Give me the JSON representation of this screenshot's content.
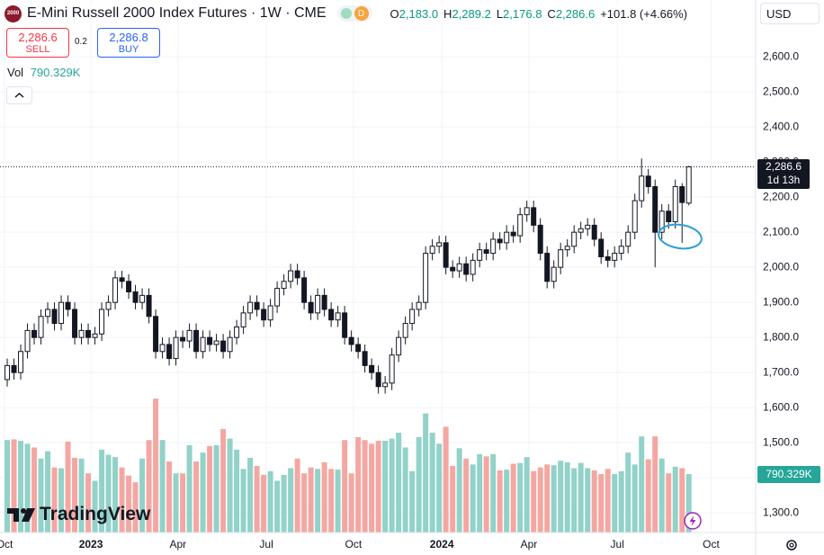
{
  "chart_data": {
    "type": "candlestick",
    "symbol_logo": "2000",
    "title": "E-Mini Russell 2000 Index Futures · 1W · CME",
    "badge": "D",
    "legend": [
      [
        "O",
        "2,183.0"
      ],
      [
        "H",
        "2,289.2"
      ],
      [
        "L",
        "2,176.8"
      ],
      [
        "C",
        "2,286.6"
      ]
    ],
    "change": "+101.8 (+4.66%)",
    "currency": "USD",
    "sell_price": "2,286.6",
    "sell_label": "SELL",
    "spread": "0.2",
    "buy_price": "2,286.8",
    "buy_label": "BUY",
    "volume_title": "Vol",
    "volume_last_label": "790.329K",
    "last_price_label": "2,286.6",
    "countdown": "1d 13h",
    "brand": "TradingView",
    "up_color": "#ffffff",
    "down_color": "#131722",
    "outline_color": "#131722",
    "volume_up_color": "#92d2c8",
    "volume_down_color": "#f4a7a2",
    "open": [
      1680,
      1720,
      1700,
      1760,
      1820,
      1800,
      1860,
      1880,
      1840,
      1900,
      1880,
      1800,
      1820,
      1800,
      1810,
      1880,
      1900,
      1970,
      1960,
      1930,
      1900,
      1920,
      1860,
      1760,
      1780,
      1740,
      1800,
      1790,
      1820,
      1760,
      1800,
      1780,
      1790,
      1760,
      1800,
      1830,
      1870,
      1900,
      1880,
      1850,
      1890,
      1940,
      1960,
      1990,
      1970,
      1900,
      1870,
      1920,
      1880,
      1850,
      1870,
      1800,
      1780,
      1760,
      1720,
      1700,
      1660,
      1670,
      1750,
      1800,
      1840,
      1880,
      1900,
      2040,
      2060,
      2070,
      2000,
      1990,
      2010,
      1980,
      2020,
      2050,
      2040,
      2080,
      2070,
      2100,
      2090,
      2150,
      2170,
      2120,
      2040,
      1960,
      2000,
      2050,
      2060,
      2100,
      2110,
      2120,
      2080,
      2030,
      2020,
      2040,
      2060,
      2100,
      2190,
      2260,
      2230,
      2100,
      2160,
      2130,
      2230,
      2183
    ],
    "high": [
      1740,
      1740,
      1780,
      1840,
      1840,
      1880,
      1900,
      1900,
      1920,
      1920,
      1900,
      1840,
      1840,
      1830,
      1900,
      1920,
      1990,
      1990,
      1980,
      1950,
      1940,
      1940,
      1880,
      1800,
      1800,
      1820,
      1820,
      1840,
      1840,
      1820,
      1820,
      1810,
      1810,
      1820,
      1850,
      1890,
      1920,
      1920,
      1900,
      1910,
      1960,
      1980,
      2010,
      2010,
      1990,
      1920,
      1940,
      1940,
      1900,
      1890,
      1890,
      1820,
      1800,
      1780,
      1740,
      1720,
      1690,
      1770,
      1820,
      1860,
      1900,
      1920,
      2060,
      2080,
      2090,
      2090,
      2020,
      2030,
      2030,
      2040,
      2070,
      2070,
      2100,
      2100,
      2120,
      2120,
      2170,
      2190,
      2190,
      2140,
      2060,
      2020,
      2070,
      2080,
      2120,
      2130,
      2140,
      2140,
      2100,
      2050,
      2060,
      2080,
      2120,
      2210,
      2310,
      2280,
      2250,
      2180,
      2180,
      2250,
      2240,
      2289.2
    ],
    "low": [
      1660,
      1680,
      1680,
      1740,
      1780,
      1780,
      1840,
      1820,
      1820,
      1860,
      1780,
      1780,
      1780,
      1780,
      1790,
      1860,
      1880,
      1940,
      1910,
      1880,
      1880,
      1840,
      1740,
      1740,
      1720,
      1720,
      1770,
      1770,
      1740,
      1740,
      1760,
      1760,
      1740,
      1740,
      1780,
      1810,
      1850,
      1860,
      1830,
      1830,
      1870,
      1920,
      1940,
      1950,
      1880,
      1850,
      1850,
      1860,
      1830,
      1830,
      1780,
      1760,
      1740,
      1700,
      1680,
      1640,
      1640,
      1650,
      1730,
      1780,
      1820,
      1860,
      1880,
      2020,
      2040,
      1980,
      1970,
      1970,
      1960,
      1960,
      2000,
      2020,
      2020,
      2050,
      2050,
      2070,
      2070,
      2130,
      2100,
      2020,
      1940,
      1940,
      1980,
      2030,
      2040,
      2080,
      2090,
      2060,
      2010,
      2000,
      2000,
      2020,
      2040,
      2080,
      2170,
      2210,
      2000,
      2080,
      2110,
      2110,
      2070,
      2176.8
    ],
    "close": [
      1720,
      1700,
      1760,
      1820,
      1800,
      1860,
      1880,
      1840,
      1900,
      1880,
      1800,
      1820,
      1800,
      1810,
      1880,
      1900,
      1970,
      1960,
      1930,
      1900,
      1920,
      1860,
      1760,
      1780,
      1740,
      1800,
      1790,
      1820,
      1760,
      1800,
      1780,
      1790,
      1760,
      1800,
      1830,
      1870,
      1900,
      1880,
      1850,
      1890,
      1940,
      1960,
      1990,
      1970,
      1900,
      1870,
      1920,
      1880,
      1850,
      1870,
      1800,
      1780,
      1760,
      1720,
      1700,
      1660,
      1670,
      1750,
      1800,
      1840,
      1880,
      1900,
      2040,
      2060,
      2070,
      2000,
      1990,
      2010,
      1980,
      2020,
      2050,
      2040,
      2080,
      2070,
      2100,
      2090,
      2150,
      2170,
      2120,
      2040,
      1960,
      2000,
      2050,
      2060,
      2100,
      2110,
      2120,
      2080,
      2030,
      2020,
      2040,
      2060,
      2100,
      2190,
      2260,
      2230,
      2100,
      2160,
      2130,
      2230,
      2184.8,
      2286.6
    ],
    "volume": [
      1250000,
      1260000,
      1240000,
      1200000,
      1150000,
      1000000,
      1100000,
      880000,
      870000,
      1230000,
      1010000,
      1000000,
      800000,
      700000,
      1120000,
      1050000,
      1020000,
      880000,
      770000,
      680000,
      1000000,
      1250000,
      1810000,
      1250000,
      960000,
      800000,
      800000,
      1180000,
      960000,
      1080000,
      1170000,
      1180000,
      1400000,
      1270000,
      1120000,
      860000,
      1010000,
      900000,
      780000,
      830000,
      700000,
      780000,
      870000,
      1000000,
      800000,
      880000,
      860000,
      950000,
      860000,
      850000,
      1250000,
      800000,
      1290000,
      1250000,
      1200000,
      1240000,
      1240000,
      1270000,
      1350000,
      1150000,
      830000,
      1290000,
      1610000,
      1350000,
      1200000,
      1430000,
      900000,
      1140000,
      1000000,
      920000,
      1060000,
      1030000,
      1060000,
      840000,
      850000,
      930000,
      940000,
      1020000,
      830000,
      880000,
      920000,
      910000,
      970000,
      950000,
      870000,
      940000,
      870000,
      840000,
      790000,
      860000,
      790000,
      830000,
      1080000,
      920000,
      1300000,
      990000,
      1300000,
      1000000,
      800000,
      890000,
      870000,
      790329
    ],
    "xlim": [
      -1.07,
      110.9
    ],
    "xticks": [
      {
        "value": -0.4,
        "label": "Oct"
      },
      {
        "value": 12.4,
        "label": "2023"
      },
      {
        "value": 25.3,
        "label": "Apr"
      },
      {
        "value": 38.4,
        "label": "Jul"
      },
      {
        "value": 51.3,
        "label": "Oct"
      },
      {
        "value": 64.4,
        "label": "2024"
      },
      {
        "value": 77.3,
        "label": "Apr"
      },
      {
        "value": 90.4,
        "label": "Jul"
      },
      {
        "value": 104.3,
        "label": "Oct"
      }
    ],
    "ylim": [
      1244,
      2762
    ],
    "yticks": [
      {
        "value": 1300,
        "label": "1,300.0"
      },
      {
        "value": 1400,
        "label": "1,400.0"
      },
      {
        "value": 1500,
        "label": "1,500.0"
      },
      {
        "value": 1600,
        "label": "1,600.0"
      },
      {
        "value": 1700,
        "label": "1,700.0"
      },
      {
        "value": 1800,
        "label": "1,800.0"
      },
      {
        "value": 1900,
        "label": "1,900.0"
      },
      {
        "value": 2000,
        "label": "2,000.0"
      },
      {
        "value": 2100,
        "label": "2,100.0"
      },
      {
        "value": 2200,
        "label": "2,200.0"
      },
      {
        "value": 2300,
        "label": "2,300.0"
      },
      {
        "value": 2400,
        "label": "2,400.0"
      },
      {
        "value": 2500,
        "label": "2,500.0"
      },
      {
        "value": 2600,
        "label": "2,600.0"
      }
    ],
    "y2lim": [
      0,
      7200000
    ],
    "grid": true
  }
}
